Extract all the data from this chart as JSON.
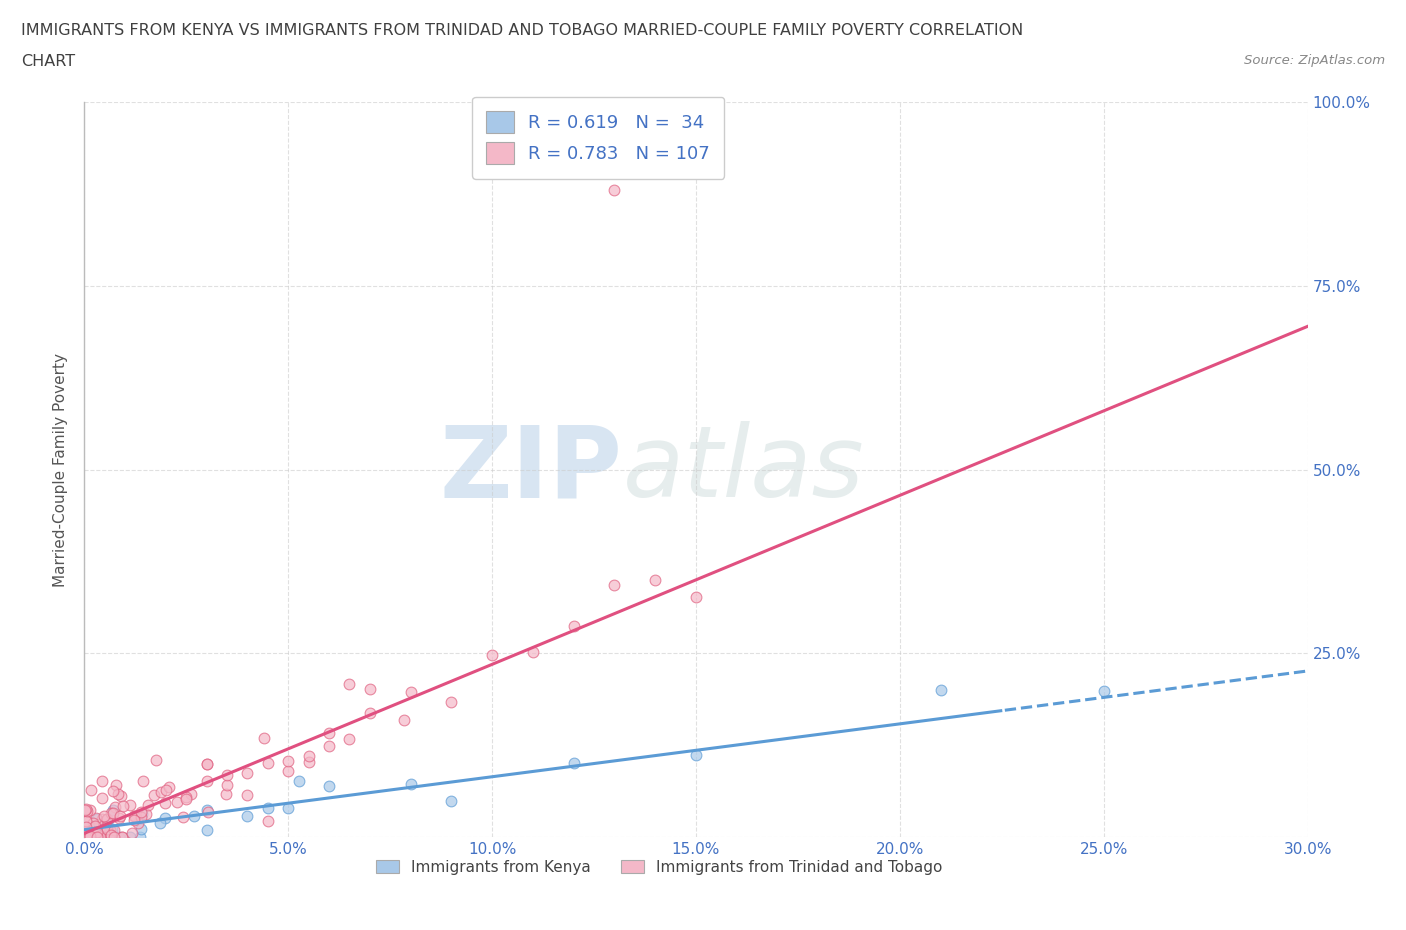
{
  "title_line1": "IMMIGRANTS FROM KENYA VS IMMIGRANTS FROM TRINIDAD AND TOBAGO MARRIED-COUPLE FAMILY POVERTY CORRELATION",
  "title_line2": "CHART",
  "source_text": "Source: ZipAtlas.com",
  "ylabel": "Married-Couple Family Poverty",
  "xlim": [
    0.0,
    0.3
  ],
  "ylim": [
    0.0,
    1.0
  ],
  "y_tick_values": [
    0.0,
    0.25,
    0.5,
    0.75,
    1.0
  ],
  "x_tick_values": [
    0.0,
    0.05,
    0.1,
    0.15,
    0.2,
    0.25,
    0.3
  ],
  "kenya_color": "#A8C8E8",
  "kenya_edge_color": "#5B9BD5",
  "kenya_line_color": "#5B9BD5",
  "tt_color": "#F4B8C8",
  "tt_edge_color": "#E06080",
  "tt_line_color": "#E05080",
  "background_color": "#FFFFFF",
  "watermark_zip": "ZIP",
  "watermark_atlas": "atlas",
  "legend_kenya_label": "Immigrants from Kenya",
  "legend_tt_label": "Immigrants from Trinidad and Tobago",
  "kenya_R": 0.619,
  "kenya_N": 34,
  "tt_R": 0.783,
  "tt_N": 107,
  "kenya_slope": 0.72,
  "kenya_intercept": 0.01,
  "tt_slope": 2.3,
  "tt_intercept": 0.005,
  "grid_color": "#CCCCCC",
  "title_color": "#404040",
  "label_color": "#4472C4"
}
